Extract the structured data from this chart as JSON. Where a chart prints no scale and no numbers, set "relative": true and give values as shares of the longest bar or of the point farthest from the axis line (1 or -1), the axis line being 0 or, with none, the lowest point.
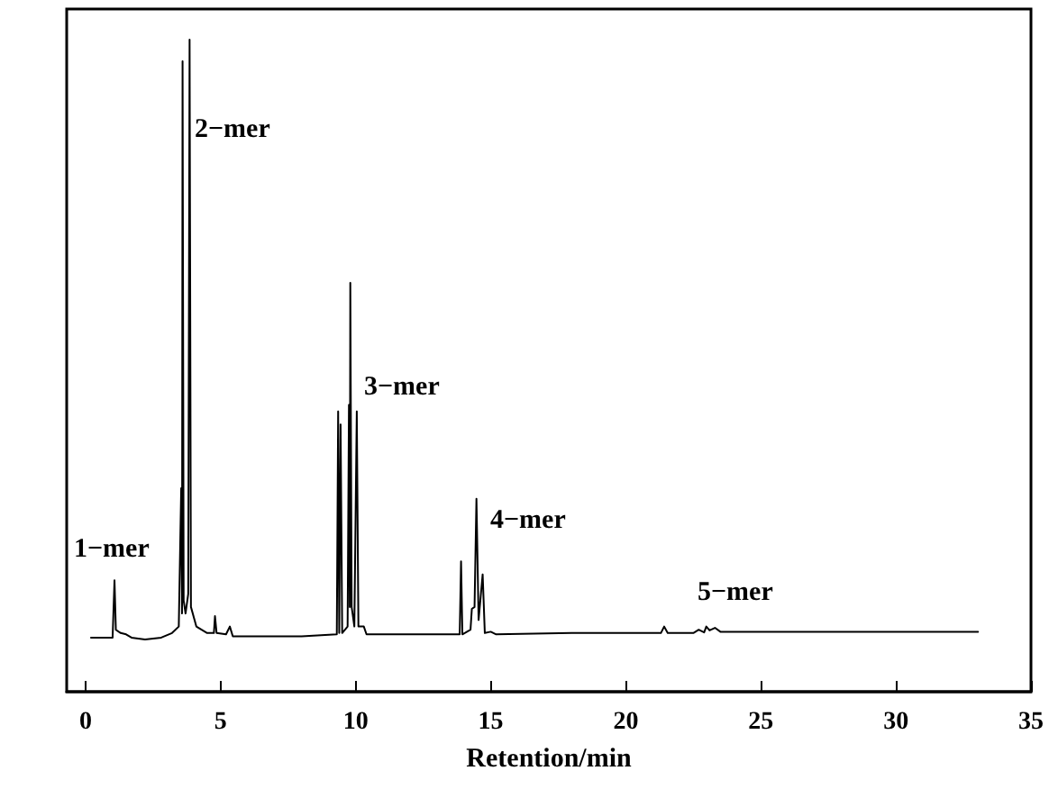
{
  "chart_data": {
    "type": "line",
    "xlabel": "Retention/min",
    "relative": true,
    "xlim": [
      -0.7,
      35
    ],
    "xticks": [
      0,
      5,
      10,
      15,
      20,
      25,
      30,
      35
    ],
    "marker": "none",
    "line_style": "solid",
    "series": [
      {
        "color": "#000000",
        "x": [
          0.2,
          1.0,
          1.07,
          1.12,
          1.3,
          1.5,
          1.7,
          2.2,
          2.8,
          3.2,
          3.45,
          3.54,
          3.57,
          3.59,
          3.63,
          3.7,
          3.8,
          3.85,
          3.9,
          4.1,
          4.5,
          4.75,
          4.79,
          4.85,
          5.2,
          5.34,
          5.45,
          6.5,
          8.0,
          9.3,
          9.35,
          9.39,
          9.44,
          9.5,
          9.7,
          9.75,
          9.78,
          9.8,
          9.85,
          9.95,
          10.04,
          10.1,
          10.3,
          10.4,
          12,
          13.85,
          13.9,
          13.95,
          14.25,
          14.3,
          14.4,
          14.47,
          14.55,
          14.7,
          14.78,
          15.0,
          15.2,
          18,
          21.3,
          21.42,
          21.55,
          22.5,
          22.7,
          22.9,
          22.98,
          23.1,
          23.3,
          23.5,
          26,
          33.04
        ],
        "values": [
          0.083,
          0.083,
          0.171,
          0.095,
          0.09,
          0.088,
          0.083,
          0.08,
          0.083,
          0.09,
          0.1,
          0.312,
          0.12,
          0.967,
          0.14,
          0.12,
          0.15,
          1.0,
          0.13,
          0.1,
          0.09,
          0.09,
          0.116,
          0.09,
          0.088,
          0.1,
          0.085,
          0.085,
          0.085,
          0.088,
          0.43,
          0.09,
          0.41,
          0.09,
          0.1,
          0.44,
          0.13,
          0.627,
          0.13,
          0.1,
          0.43,
          0.1,
          0.1,
          0.088,
          0.088,
          0.088,
          0.2,
          0.088,
          0.095,
          0.127,
          0.13,
          0.296,
          0.11,
          0.18,
          0.09,
          0.092,
          0.088,
          0.09,
          0.09,
          0.1,
          0.09,
          0.09,
          0.095,
          0.091,
          0.1,
          0.094,
          0.098,
          0.092,
          0.092,
          0.092
        ]
      }
    ],
    "annotations": [
      "1−mer",
      "2−mer",
      "3−mer",
      "4−mer",
      "5−mer"
    ]
  }
}
